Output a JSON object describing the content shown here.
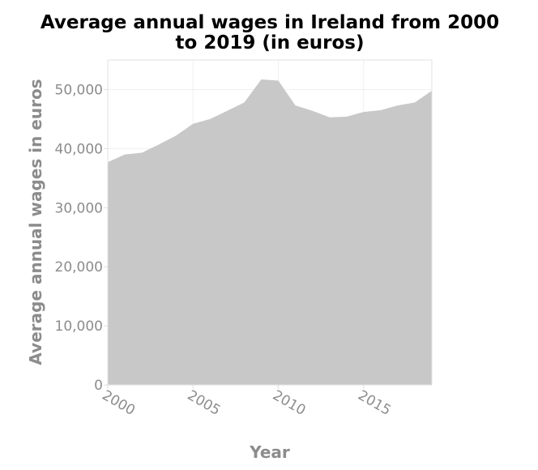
{
  "chart_data": {
    "type": "area",
    "title_lines": [
      "Average annual wages in Ireland from 2000",
      "to 2019 (in euros)"
    ],
    "xlabel": "Year",
    "ylabel": "Average annual wages in euros",
    "x": [
      2000,
      2001,
      2002,
      2003,
      2004,
      2005,
      2006,
      2007,
      2008,
      2009,
      2010,
      2011,
      2012,
      2013,
      2014,
      2015,
      2016,
      2017,
      2018,
      2019
    ],
    "series": [
      {
        "values": [
          37700,
          39000,
          39300,
          40700,
          42200,
          44200,
          45000,
          46400,
          47800,
          51700,
          51500,
          47300,
          46400,
          45300,
          45400,
          46200,
          46500,
          47300,
          47800,
          49800
        ]
      }
    ],
    "xlim": [
      2000,
      2019
    ],
    "ylim": [
      0,
      55000
    ],
    "x_ticks": [
      2000,
      2005,
      2010,
      2015
    ],
    "x_tick_labels": [
      "2000",
      "2005",
      "2010",
      "2015"
    ],
    "y_ticks": [
      0,
      10000,
      20000,
      30000,
      40000,
      50000
    ],
    "y_tick_labels": [
      "0",
      "10,000",
      "20,000",
      "30,000",
      "40,000",
      "50,000"
    ],
    "grid": true,
    "colors": {
      "area_fill": "#c8c8c8",
      "axis": "#e0e0e0",
      "grid": "#f0f0f0",
      "tick_text": "#8c8c8c",
      "title_text": "#000000"
    }
  }
}
